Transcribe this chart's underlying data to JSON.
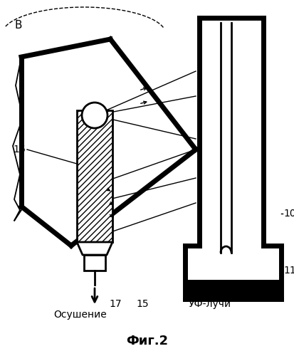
{
  "title": "Фиг.2",
  "label_B": "В",
  "label_16": "16",
  "label_17": "17",
  "label_15": "15",
  "label_10": "10",
  "label_11": "11",
  "label_osushenie": "Осушение",
  "label_uv": "УФ-лучи",
  "bg_color": "#ffffff",
  "line_color": "#000000",
  "thick_lw": 5.0,
  "med_lw": 2.0,
  "thin_lw": 1.0,
  "fig_width": 4.13,
  "fig_height": 5.0,
  "dpi": 100
}
